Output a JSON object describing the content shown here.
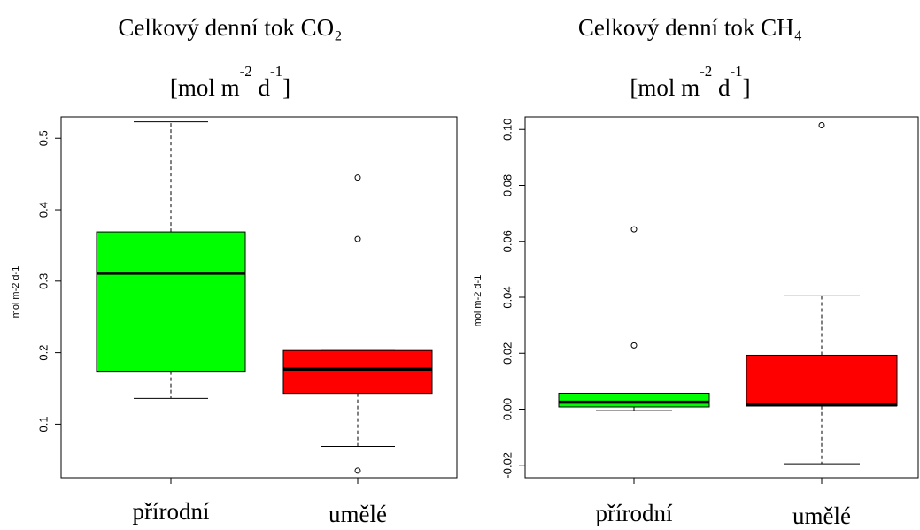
{
  "chart_data": [
    {
      "type": "box",
      "title": "Celkový denní tok CO₂",
      "title_units": {
        "pre": "[mol m",
        "sup1": "-2",
        "mid": " d",
        "sup2": "-1",
        "post": "]"
      },
      "ylabel": "mol m-2 d-1",
      "ylim": [
        0.025,
        0.53
      ],
      "yticks": [
        0.1,
        0.2,
        0.3,
        0.4,
        0.5
      ],
      "ytick_labels": [
        "0.1",
        "0.2",
        "0.3",
        "0.4",
        "0.5"
      ],
      "categories": [
        "přírodní",
        "umělé"
      ],
      "colors": [
        "#00ff00",
        "#ff0000"
      ],
      "boxes": [
        {
          "category": "přírodní",
          "whisker_low": 0.136,
          "q1": 0.174,
          "median": 0.311,
          "q3": 0.369,
          "whisker_high": 0.523,
          "outliers": []
        },
        {
          "category": "umělé",
          "whisker_low": 0.069,
          "q1": 0.143,
          "median": 0.177,
          "q3": 0.203,
          "whisker_high": 0.203,
          "outliers": [
            0.035,
            0.359,
            0.445
          ]
        }
      ]
    },
    {
      "type": "box",
      "title": "Celkový denní tok CH₄",
      "title_units": {
        "pre": "[mol m",
        "sup1": "-2",
        "mid": " d",
        "sup2": "-1",
        "post": "]"
      },
      "ylabel": "mol m-2 d-1",
      "ylim": [
        -0.0245,
        0.1045
      ],
      "yticks": [
        -0.02,
        0.0,
        0.02,
        0.04,
        0.06,
        0.08,
        0.1
      ],
      "ytick_labels": [
        "-0.02",
        "0.00",
        "0.02",
        "0.04",
        "0.06",
        "0.08",
        "0.10"
      ],
      "categories": [
        "přírodní",
        "umělé"
      ],
      "colors": [
        "#00ff00",
        "#ff0000"
      ],
      "boxes": [
        {
          "category": "přírodní",
          "whisker_low": -0.0005,
          "q1": 0.0008,
          "median": 0.0025,
          "q3": 0.0057,
          "whisker_high": 0.0057,
          "outliers": [
            0.0228,
            0.0643
          ]
        },
        {
          "category": "umělé",
          "whisker_low": -0.0195,
          "q1": 0.0012,
          "median": 0.0015,
          "q3": 0.0193,
          "whisker_high": 0.0405,
          "outliers": [
            0.1015
          ]
        }
      ]
    }
  ]
}
